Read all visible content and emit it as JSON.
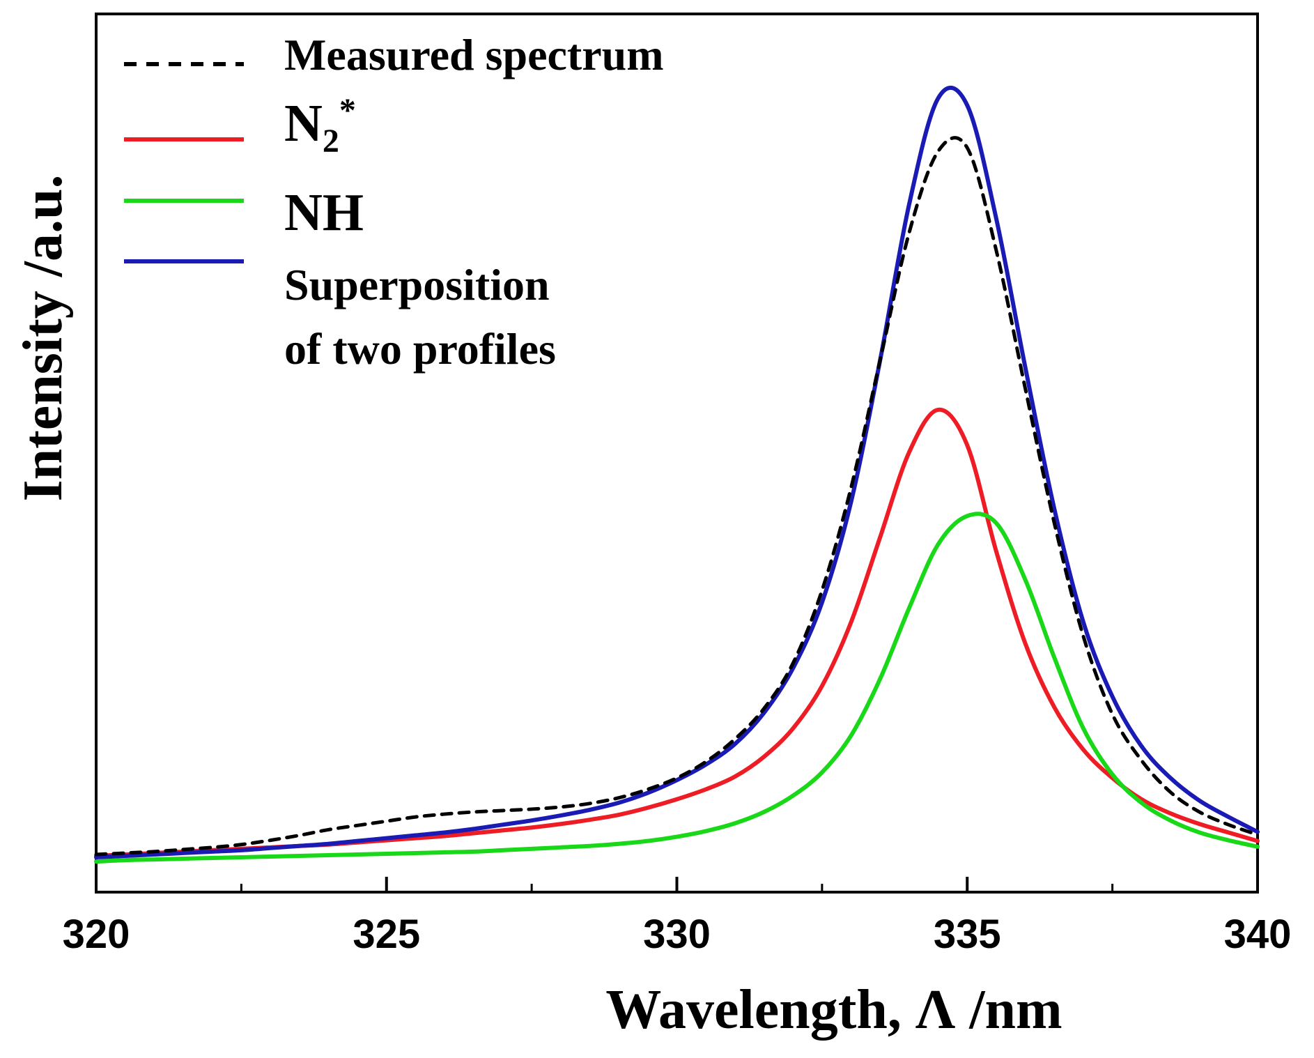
{
  "chart_data": {
    "type": "line",
    "title": "",
    "xlabel": "Wavelength, Λ /nm",
    "ylabel": "Intensity /a.u.",
    "xlim": [
      320,
      340
    ],
    "ylim": [
      0,
      1.05
    ],
    "x_ticks": [
      "320",
      "325",
      "330",
      "335",
      "340"
    ],
    "x_tick_values": [
      320,
      325,
      330,
      335,
      340
    ],
    "x_minor_tick_values": [
      322.5,
      327.5,
      332.5,
      337.5
    ],
    "y_ticks_shown": false,
    "grid": false,
    "legend_position": "top-left",
    "x": [
      320.0,
      320.5,
      321.0,
      321.5,
      322.0,
      322.5,
      323.0,
      323.5,
      324.0,
      324.5,
      325.0,
      325.5,
      326.0,
      326.5,
      327.0,
      327.5,
      328.0,
      328.5,
      329.0,
      329.5,
      330.0,
      330.5,
      331.0,
      331.5,
      332.0,
      332.5,
      333.0,
      333.5,
      334.0,
      334.5,
      335.0,
      335.5,
      336.0,
      336.5,
      337.0,
      337.5,
      338.0,
      338.5,
      339.0,
      339.5,
      340.0
    ],
    "series": [
      {
        "name": "Measured spectrum",
        "label": "Measured spectrum",
        "color": "#000000",
        "style": "dashed",
        "values": [
          0.002,
          0.004,
          0.006,
          0.009,
          0.012,
          0.016,
          0.022,
          0.029,
          0.037,
          0.043,
          0.049,
          0.055,
          0.059,
          0.062,
          0.064,
          0.066,
          0.069,
          0.074,
          0.082,
          0.094,
          0.11,
          0.133,
          0.165,
          0.208,
          0.272,
          0.375,
          0.52,
          0.7,
          0.88,
          0.995,
          1.0,
          0.855,
          0.66,
          0.47,
          0.31,
          0.2,
          0.135,
          0.09,
          0.062,
          0.044,
          0.03
        ]
      },
      {
        "name": "N2*",
        "label": "N",
        "label_sub": "2",
        "label_sup": "*",
        "color": "#ee1c24",
        "style": "solid",
        "values": [
          0.0,
          0.002,
          0.004,
          0.006,
          0.008,
          0.01,
          0.012,
          0.014,
          0.016,
          0.019,
          0.022,
          0.025,
          0.028,
          0.032,
          0.036,
          0.04,
          0.045,
          0.051,
          0.058,
          0.068,
          0.08,
          0.094,
          0.112,
          0.14,
          0.18,
          0.24,
          0.33,
          0.45,
          0.57,
          0.63,
          0.58,
          0.43,
          0.3,
          0.21,
          0.15,
          0.11,
          0.08,
          0.06,
          0.045,
          0.033,
          0.021
        ]
      },
      {
        "name": "NH",
        "label": "NH",
        "color": "#18d818",
        "style": "solid",
        "values": [
          -0.008,
          -0.006,
          -0.005,
          -0.004,
          -0.003,
          -0.002,
          -0.001,
          0.0,
          0.001,
          0.002,
          0.003,
          0.004,
          0.005,
          0.006,
          0.008,
          0.01,
          0.012,
          0.014,
          0.017,
          0.021,
          0.027,
          0.035,
          0.046,
          0.062,
          0.085,
          0.118,
          0.17,
          0.25,
          0.35,
          0.44,
          0.48,
          0.47,
          0.39,
          0.28,
          0.18,
          0.115,
          0.075,
          0.05,
          0.033,
          0.022,
          0.013
        ]
      },
      {
        "name": "Superposition of two profiles",
        "label_line1": "Superposition",
        "label_line2": "of two profiles",
        "color": "#1a1ab4",
        "style": "solid",
        "values": [
          -0.002,
          0.0,
          0.002,
          0.004,
          0.006,
          0.008,
          0.011,
          0.014,
          0.017,
          0.021,
          0.025,
          0.029,
          0.033,
          0.038,
          0.044,
          0.05,
          0.057,
          0.065,
          0.075,
          0.089,
          0.107,
          0.129,
          0.158,
          0.202,
          0.265,
          0.358,
          0.5,
          0.7,
          0.92,
          1.07,
          1.06,
          0.9,
          0.69,
          0.49,
          0.33,
          0.225,
          0.155,
          0.11,
          0.078,
          0.055,
          0.034
        ]
      }
    ]
  }
}
